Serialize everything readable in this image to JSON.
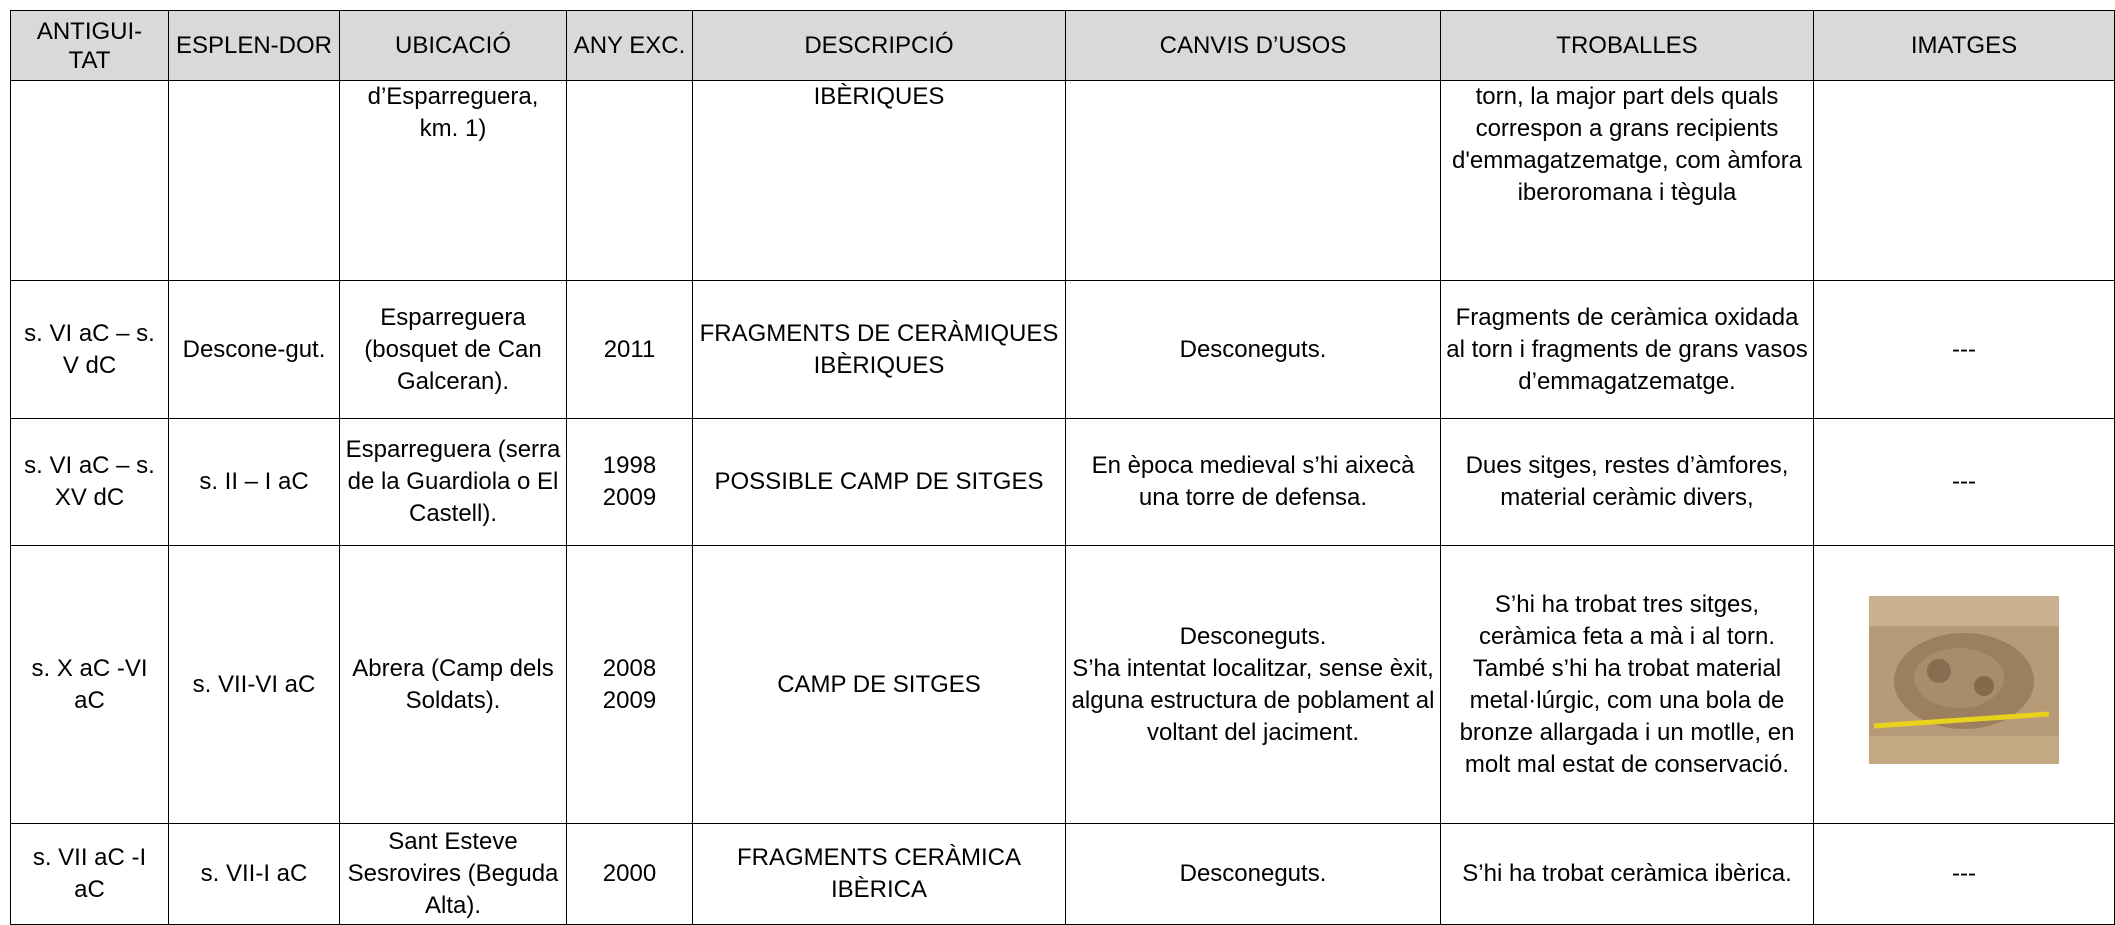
{
  "table": {
    "header": [
      "ANTIGUI-TAT",
      "ESPLEN-DOR",
      "UBICACIÓ",
      "ANY EXC.",
      "DESCRIPCIÓ",
      "CANVIS D’USOS",
      "TROBALLES",
      "IMATGES"
    ],
    "rows": [
      [
        null,
        null,
        "d’Esparreguera, km. 1)",
        null,
        "IBÈRIQUES",
        null,
        "torn, la major part dels quals correspon a grans recipients d'emmagatzematge, com àmfora iberoromana i tègula",
        null
      ],
      [
        "s. VI aC – s. V dC",
        "Descone-gut.",
        "Esparreguera (bosquet de Can Galceran).",
        "2011",
        "FRAGMENTS DE CERÀMIQUES IBÈRIQUES",
        "Desconeguts.",
        "Fragments de ceràmica oxidada al torn i fragments de grans vasos d’emmagatzematge.",
        "---"
      ],
      [
        "s. VI aC – s. XV dC",
        "s. II – I aC",
        "Esparreguera (serra de la Guardiola o El Castell).",
        "1998\n2009",
        "POSSIBLE CAMP DE SITGES",
        "En època medieval s’hi aixecà una torre de defensa.",
        "Dues sitges, restes d’àmfores, material ceràmic divers,",
        "---"
      ],
      [
        "s. X aC -VI aC",
        "s. VII-VI aC",
        "Abrera (Camp dels Soldats).",
        "2008\n2009",
        "CAMP DE SITGES",
        "Desconeguts.\nS’ha intentat localitzar, sense èxit, alguna estructura de poblament al voltant del jaciment.",
        "S’hi ha trobat tres sitges, ceràmica feta a mà i al torn. També s’hi ha trobat material metal·lúrgic, com una bola de bronze allargada i un motlle, en molt mal estat de conservació.",
        null
      ],
      [
        "s. VII aC -I aC",
        "s. VII-I aC",
        "Sant Esteve Sesrovires (Beguda Alta).",
        "2000",
        "FRAGMENTS CERÀMICA IBÈRICA",
        "Desconeguts.",
        "S’hi ha trobat ceràmica ibèrica.",
        "---"
      ]
    ]
  }
}
